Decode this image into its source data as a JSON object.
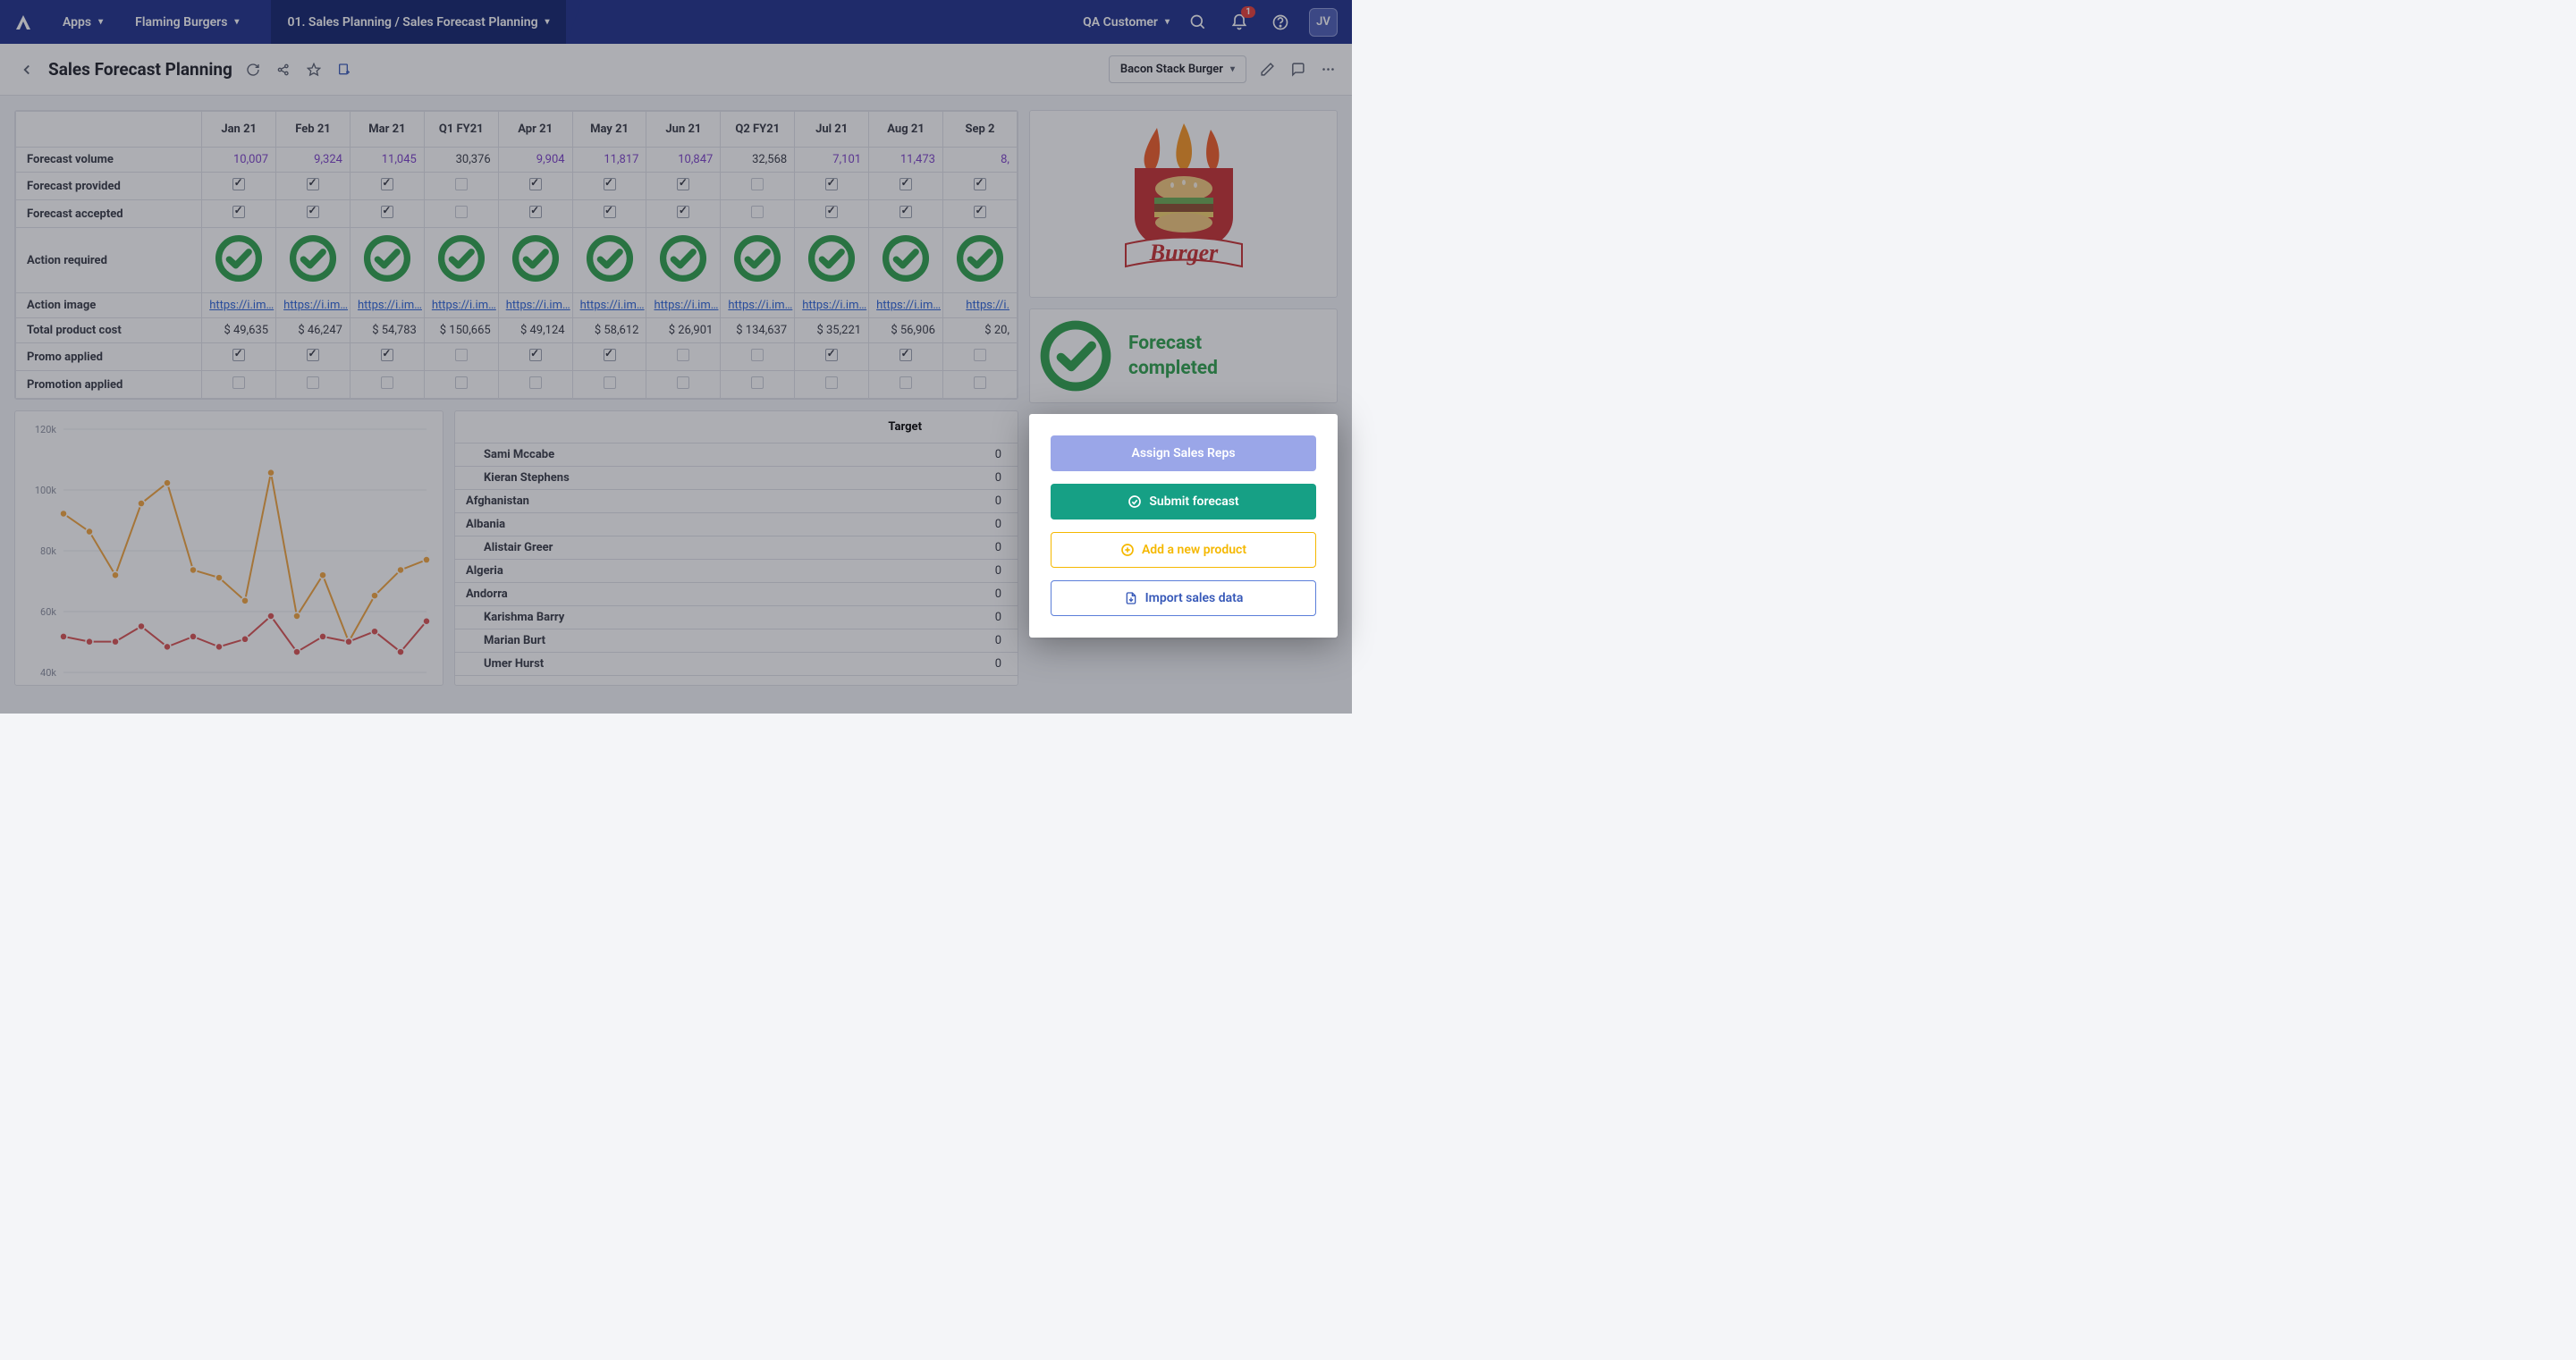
{
  "topbar": {
    "apps_label": "Apps",
    "workspace": "Flaming Burgers",
    "breadcrumb": "01. Sales Planning / Sales Forecast Planning",
    "customer": "QA Customer",
    "notification_count": "1",
    "avatar_initials": "JV"
  },
  "header": {
    "title": "Sales Forecast Planning",
    "filter": "Bacon Stack Burger"
  },
  "forecast_table": {
    "columns": [
      "Jan 21",
      "Feb 21",
      "Mar 21",
      "Q1 FY21",
      "Apr 21",
      "May 21",
      "Jun 21",
      "Q2 FY21",
      "Jul 21",
      "Aug 21",
      "Sep 2"
    ],
    "rows": {
      "volume": {
        "label": "Forecast volume",
        "value_colors": [
          "purple",
          "purple",
          "purple",
          "dark",
          "purple",
          "purple",
          "purple",
          "dark",
          "purple",
          "purple",
          "purple"
        ],
        "values": [
          "10,007",
          "9,324",
          "11,045",
          "30,376",
          "9,904",
          "11,817",
          "10,847",
          "32,568",
          "7,101",
          "11,473",
          "8,"
        ]
      },
      "provided": {
        "label": "Forecast provided",
        "checks": [
          true,
          true,
          true,
          false,
          true,
          true,
          true,
          false,
          true,
          true,
          true
        ]
      },
      "accepted": {
        "label": "Forecast accepted",
        "checks": [
          true,
          true,
          true,
          false,
          true,
          true,
          true,
          false,
          true,
          true,
          true
        ]
      },
      "action_required": {
        "label": "Action required"
      },
      "action_image": {
        "label": "Action image",
        "link_text": "https://i.im…"
      },
      "total_cost": {
        "label": "Total product cost",
        "values": [
          "$ 49,635",
          "$ 46,247",
          "$ 54,783",
          "$ 150,665",
          "$ 49,124",
          "$ 58,612",
          "$ 26,901",
          "$ 134,637",
          "$ 35,221",
          "$ 56,906",
          "$ 20,"
        ]
      },
      "promo_applied": {
        "label": "Promo applied",
        "checks": [
          true,
          true,
          true,
          false,
          true,
          true,
          false,
          false,
          true,
          true,
          false
        ]
      },
      "promotion_applied": {
        "label": "Promotion applied",
        "checks": [
          false,
          false,
          false,
          false,
          false,
          false,
          false,
          false,
          false,
          false,
          false
        ]
      }
    }
  },
  "chart": {
    "ylabels": [
      "120k",
      "100k",
      "80k",
      "60k",
      "40k"
    ],
    "ylim": [
      30000,
      125000
    ],
    "series": [
      {
        "name": "orange",
        "color": "#f2a43a",
        "values": [
          92000,
          85000,
          68000,
          96000,
          104000,
          70000,
          67000,
          58000,
          108000,
          52000,
          68000,
          42000,
          60000,
          70000,
          74000
        ]
      },
      {
        "name": "red",
        "color": "#d94f4f",
        "values": [
          44000,
          42000,
          42000,
          48000,
          40000,
          44000,
          40000,
          43000,
          52000,
          38000,
          44000,
          42000,
          46000,
          38000,
          50000
        ]
      }
    ],
    "background_color": "#ffffff",
    "grid_color": "#e8eaef",
    "marker_size": 4,
    "line_width": 2
  },
  "target_table": {
    "header": "Target",
    "rows": [
      {
        "label": "Sami Mccabe",
        "indent": 1,
        "val": "0"
      },
      {
        "label": "Kieran Stephens",
        "indent": 1,
        "val": "0"
      },
      {
        "label": "Afghanistan",
        "indent": 0,
        "val": "0"
      },
      {
        "label": "Albania",
        "indent": 0,
        "val": "0"
      },
      {
        "label": "Alistair Greer",
        "indent": 1,
        "val": "0"
      },
      {
        "label": "Algeria",
        "indent": 0,
        "val": "0"
      },
      {
        "label": "Andorra",
        "indent": 0,
        "val": "0"
      },
      {
        "label": "Karishma Barry",
        "indent": 1,
        "val": "0"
      },
      {
        "label": "Marian Burt",
        "indent": 1,
        "val": "0"
      },
      {
        "label": "Umer Hurst",
        "indent": 1,
        "val": "0"
      }
    ]
  },
  "status": {
    "line1": "Forecast",
    "line2": "completed",
    "color": "#2aa04a"
  },
  "actions": {
    "assign": "Assign Sales Reps",
    "submit": "Submit forecast",
    "add": "Add a new product",
    "import": "Import sales data"
  },
  "brand_logo": {
    "shield_color": "#c72c2e",
    "flame_colors": [
      "#f05a22",
      "#f7941d",
      "#fcb034"
    ],
    "text": "Burger",
    "text_color": "#c72c2e"
  }
}
